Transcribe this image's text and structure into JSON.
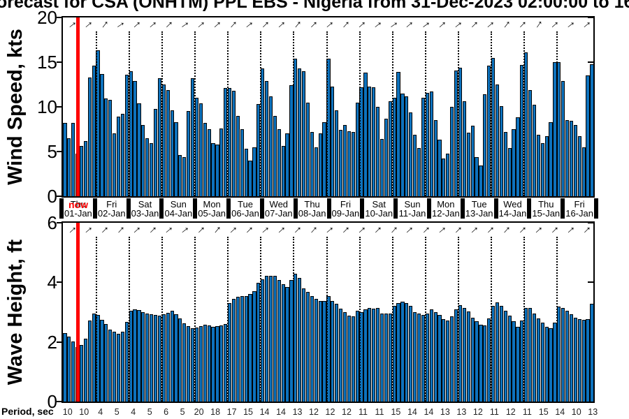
{
  "title": "orecast for CSA (ONHTM) PPL EBS  - Nigeria from 31-Dec-2023 02:00:00 to 16",
  "now_label": "now",
  "period_label": "Period, sec",
  "colors": {
    "bar_fill": "#0d72bd",
    "bar_edge": "#000000",
    "now_line": "#ff0000",
    "day_divider": "#000000"
  },
  "x_axis": {
    "day_labels": [
      {
        "day": "Thu",
        "date": "01-Jan"
      },
      {
        "day": "Fri",
        "date": "02-Jan"
      },
      {
        "day": "Sat",
        "date": "03-Jan"
      },
      {
        "day": "Sun",
        "date": "04-Jan"
      },
      {
        "day": "Mon",
        "date": "05-Jan"
      },
      {
        "day": "Tue",
        "date": "06-Jan"
      },
      {
        "day": "Wed",
        "date": "07-Jan"
      },
      {
        "day": "Thu",
        "date": "08-Jan"
      },
      {
        "day": "Fri",
        "date": "09-Jan"
      },
      {
        "day": "Sat",
        "date": "10-Jan"
      },
      {
        "day": "Sun",
        "date": "11-Jan"
      },
      {
        "day": "Mon",
        "date": "12-Jan"
      },
      {
        "day": "Tue",
        "date": "13-Jan"
      },
      {
        "day": "Wed",
        "date": "14-Jan"
      },
      {
        "day": "Thu",
        "date": "15-Jan"
      },
      {
        "day": "Fri",
        "date": "16-Jan"
      }
    ],
    "period_values": [
      "10",
      "10",
      "4",
      "5",
      "4",
      "5",
      "6",
      "5",
      "20",
      "18",
      "17",
      "15",
      "14",
      "14",
      "13",
      "12",
      "12",
      "12",
      "11",
      "11",
      "15",
      "14",
      "14",
      "13",
      "13",
      "12",
      "11",
      "12",
      "11",
      "15",
      "14",
      "10",
      "13"
    ],
    "bars_per_day": 8,
    "now_bar_index": 3.5
  },
  "chart_data": [
    {
      "type": "bar",
      "name": "wind-speed",
      "ylabel": "Wind Speed, kts",
      "yticks": [
        0,
        5,
        10,
        15,
        20
      ],
      "ylim": [
        0,
        20
      ],
      "grid": "vertical-dotted-at-day-boundaries",
      "values": [
        8.2,
        6.5,
        8.2,
        4.8,
        5.6,
        6.2,
        13.3,
        14.6,
        16.3,
        13.7,
        10.9,
        10.8,
        7.0,
        8.9,
        9.2,
        13.6,
        14.0,
        12.9,
        10.4,
        8.0,
        6.5,
        5.9,
        9.8,
        13.2,
        12.5,
        11.9,
        9.6,
        8.3,
        4.6,
        4.4,
        9.5,
        13.2,
        11.0,
        10.4,
        8.2,
        7.5,
        5.9,
        5.8,
        7.6,
        12.1,
        12.1,
        11.8,
        9.0,
        7.5,
        5.3,
        4.0,
        5.5,
        10.3,
        14.3,
        12.9,
        11.2,
        9.0,
        7.5,
        5.6,
        7.0,
        12.4,
        15.4,
        14.3,
        14.0,
        10.5,
        7.2,
        5.5,
        7.0,
        8.3,
        15.4,
        12.3,
        9.6,
        7.4,
        8.0,
        7.3,
        7.2,
        10.5,
        12.2,
        13.8,
        12.3,
        12.2,
        10.0,
        6.4,
        8.7,
        10.6,
        11.0,
        13.9,
        11.5,
        11.2,
        9.4,
        6.9,
        5.4,
        11.0,
        11.6,
        11.7,
        8.5,
        6.3,
        4.2,
        4.8,
        10.0,
        14.1,
        14.4,
        10.6,
        7.1,
        7.9,
        4.4,
        3.4,
        11.4,
        14.6,
        15.5,
        12.5,
        10.1,
        7.2,
        5.4,
        7.5,
        8.8,
        14.7,
        16.1,
        11.9,
        10.2,
        6.9,
        5.9,
        6.7,
        8.3,
        15.0,
        15.0,
        12.9,
        8.5,
        8.4,
        8.0,
        6.7,
        5.5,
        13.5,
        14.8
      ],
      "arrow_angles_deg": [
        -38,
        -40,
        -52,
        -34,
        -42,
        -40,
        -45,
        -35,
        -40,
        -42,
        -48,
        -38,
        -45,
        -42,
        -50,
        -45,
        -40,
        -48,
        -42,
        -38,
        -35,
        -40,
        -36,
        -42,
        -38,
        -45,
        -40,
        -52,
        -46,
        -55,
        -42,
        -38,
        -40
      ]
    },
    {
      "type": "bar",
      "name": "wave-height",
      "ylabel": "Wave Height, ft",
      "yticks": [
        0,
        2,
        4,
        6
      ],
      "ylim": [
        0,
        6
      ],
      "grid": "vertical-dotted-at-day-boundaries",
      "values": [
        2.3,
        2.17,
        2.01,
        1.83,
        1.91,
        2.1,
        2.72,
        2.95,
        2.9,
        2.75,
        2.61,
        2.42,
        2.35,
        2.27,
        2.35,
        2.68,
        3.05,
        3.1,
        3.08,
        3.0,
        2.95,
        2.92,
        2.9,
        2.88,
        2.92,
        2.98,
        3.05,
        2.92,
        2.78,
        2.62,
        2.52,
        2.45,
        2.48,
        2.52,
        2.58,
        2.55,
        2.5,
        2.52,
        2.55,
        2.6,
        3.3,
        3.45,
        3.52,
        3.55,
        3.55,
        3.6,
        3.7,
        3.99,
        4.11,
        4.22,
        4.23,
        4.21,
        4.07,
        3.93,
        3.85,
        4.09,
        4.3,
        4.14,
        3.79,
        3.69,
        3.53,
        3.44,
        3.38,
        3.37,
        3.54,
        3.38,
        3.27,
        3.12,
        3.0,
        2.89,
        2.86,
        3.04,
        3.0,
        3.1,
        3.15,
        3.12,
        3.15,
        2.95,
        2.95,
        2.95,
        3.2,
        3.3,
        3.35,
        3.3,
        3.2,
        3.0,
        2.95,
        2.9,
        2.95,
        3.1,
        3.0,
        2.9,
        2.76,
        2.72,
        2.86,
        3.1,
        3.24,
        3.15,
        3.03,
        2.82,
        2.69,
        2.57,
        2.55,
        2.78,
        3.2,
        3.32,
        3.22,
        3.05,
        2.88,
        2.7,
        2.51,
        2.73,
        3.13,
        3.13,
        2.96,
        2.78,
        2.66,
        2.51,
        2.45,
        2.64,
        3.18,
        3.13,
        3.04,
        2.92,
        2.81,
        2.77,
        2.74,
        2.76,
        3.28
      ],
      "arrow_angles_deg": [
        -42,
        -40,
        -45,
        -48,
        -42,
        -45,
        -40,
        -38,
        -45,
        -50,
        -42,
        -45,
        -40,
        -42,
        -45,
        -48,
        -40,
        -45,
        -42,
        -45,
        -48,
        -42,
        -45,
        -40,
        -45,
        -42,
        -45,
        -48,
        -45,
        -42,
        -45,
        -42,
        -45
      ]
    }
  ]
}
